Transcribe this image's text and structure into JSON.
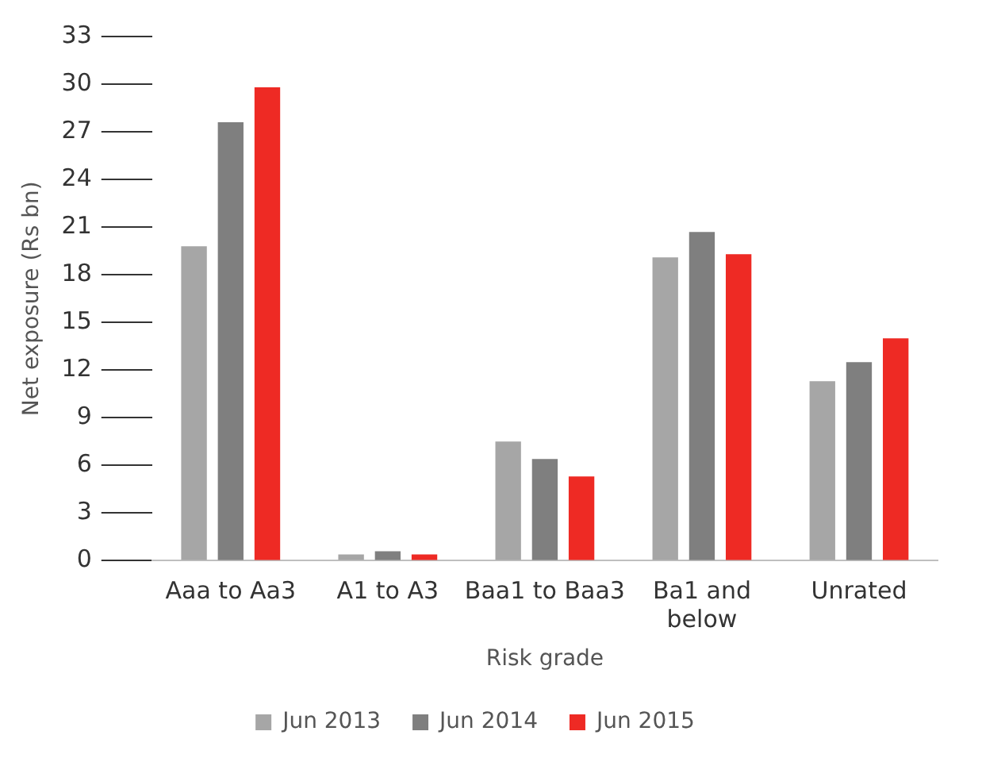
{
  "chart_data": {
    "type": "bar",
    "xlabel": "Risk grade",
    "ylabel": "Net exposure (Rs bn)",
    "categories": [
      "Aaa to Aa3",
      "A1 to A3",
      "Baa1 to Baa3",
      "Ba1 and below",
      "Unrated"
    ],
    "series": [
      {
        "name": "Jun 2013",
        "color": "#a6a6a6",
        "values": [
          19.8,
          0.4,
          7.5,
          19.1,
          11.3
        ]
      },
      {
        "name": "Jun 2014",
        "color": "#7f7f7f",
        "values": [
          27.6,
          0.6,
          6.4,
          20.7,
          12.5
        ]
      },
      {
        "name": "Jun 2015",
        "color": "#ee2a24",
        "values": [
          29.8,
          0.4,
          5.3,
          19.3,
          14.0
        ]
      }
    ],
    "ylim": [
      0,
      33
    ],
    "yticks": [
      0,
      3,
      6,
      9,
      12,
      15,
      18,
      21,
      24,
      27,
      30,
      33
    ],
    "grid": false,
    "legend": "bottom"
  }
}
